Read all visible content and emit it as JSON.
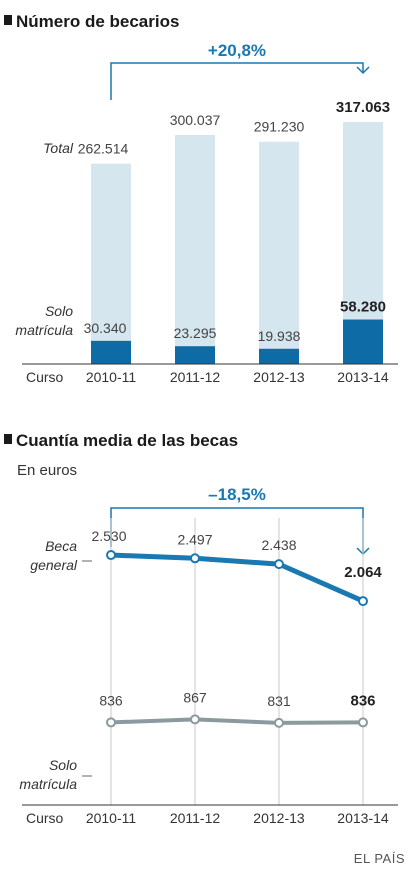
{
  "colors": {
    "accent": "#1979b0",
    "bar_total": "#d5e6ef",
    "bar_solo": "#0e6ba5",
    "line_general": "#1979b0",
    "line_solo": "#8a9a9e",
    "text": "#222222"
  },
  "bullet_icon": "square-bullet-icon",
  "source": "EL PAÍS",
  "chart_data": [
    {
      "type": "bar",
      "title": "Número de becarios",
      "categories_prefix": "Curso",
      "categories": [
        "2010-11",
        "2011-12",
        "2012-13",
        "2013-14"
      ],
      "series": [
        {
          "name": "Total",
          "values": [
            262514,
            300037,
            291230,
            317063
          ],
          "labels": [
            "262.514",
            "300.037",
            "291.230",
            "317.063"
          ]
        },
        {
          "name": "Solo matrícula",
          "values": [
            30340,
            23295,
            19938,
            58280
          ],
          "labels": [
            "30.340",
            "23.295",
            "19.938",
            "58.280"
          ]
        }
      ],
      "series_labels": {
        "total": "Total",
        "solo_line1": "Solo",
        "solo_line2": "matrícula"
      },
      "change_label": "+20,8%",
      "ylim": [
        0,
        350000
      ]
    },
    {
      "type": "line",
      "title": "Cuantía media de las becas",
      "subtitle": "En euros",
      "categories_prefix": "Curso",
      "categories": [
        "2010-11",
        "2011-12",
        "2012-13",
        "2013-14"
      ],
      "series": [
        {
          "name": "Beca general",
          "values": [
            2530,
            2497,
            2438,
            2064
          ],
          "labels": [
            "2.530",
            "2.497",
            "2.438",
            "2.064"
          ]
        },
        {
          "name": "Solo matrícula",
          "values": [
            836,
            867,
            831,
            836
          ],
          "labels": [
            "836",
            "867",
            "831",
            "836"
          ]
        }
      ],
      "series_labels": {
        "general_line1": "Beca",
        "general_line2": "general",
        "solo_line1": "Solo",
        "solo_line2": "matrícula"
      },
      "change_label": "–18,5%",
      "ylim": [
        0,
        3000
      ]
    }
  ]
}
